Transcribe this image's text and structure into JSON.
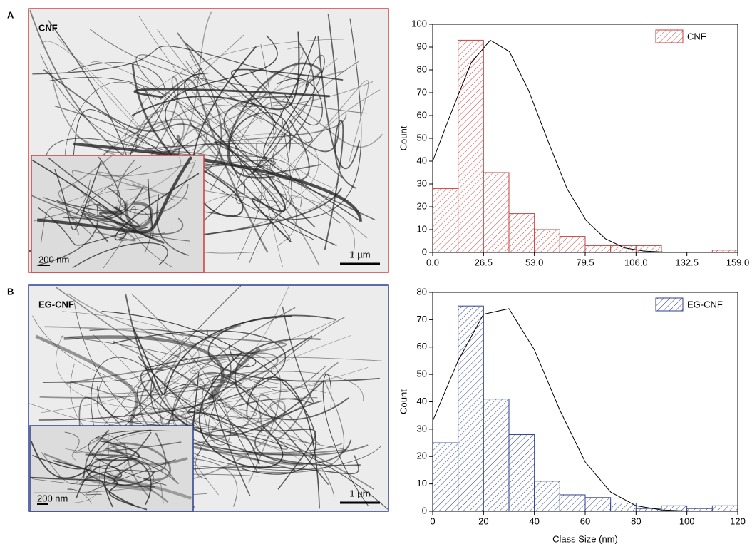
{
  "panels": [
    {
      "letter": "A",
      "image_label": "CNF",
      "scale_bar": "1 µm",
      "inset_scale_bar": "200 nm"
    },
    {
      "letter": "B",
      "image_label": "EG-CNF",
      "scale_bar": "1 µm",
      "inset_scale_bar": "200 nm"
    }
  ],
  "chart_data": [
    {
      "type": "histogram",
      "bins": [
        0,
        13.25,
        26.5,
        39.75,
        53,
        66.25,
        79.5,
        92.75,
        106,
        119.25,
        132.5,
        145.75,
        159
      ],
      "series": [
        {
          "name": "CNF",
          "color": "#c8403f",
          "values": [
            28,
            93,
            35,
            17,
            10,
            7,
            3,
            3,
            3,
            0,
            0,
            1
          ]
        }
      ],
      "curve": {
        "x": [
          0,
          10,
          20,
          30,
          40,
          50,
          60,
          70,
          80,
          90,
          100,
          110,
          120,
          130,
          140,
          150,
          159
        ],
        "values": [
          40,
          62,
          83,
          93,
          88,
          71,
          49,
          28,
          14,
          6,
          2,
          0.6,
          0.2,
          0,
          0,
          0,
          0
        ]
      },
      "ylabel": "Count",
      "xlim": [
        0,
        159
      ],
      "ylim": [
        0,
        100
      ],
      "xticks": [
        {
          "value": 0,
          "label": "0.0"
        },
        26.5,
        {
          "value": 53,
          "label": "53.0"
        },
        79.5,
        {
          "value": 106,
          "label": "106.0"
        },
        132.5,
        {
          "value": 159,
          "label": "159.0"
        }
      ],
      "yticks": [
        0,
        10,
        20,
        30,
        40,
        50,
        60,
        70,
        80,
        90,
        100
      ],
      "legend": "upper right"
    },
    {
      "type": "histogram",
      "bins": [
        0,
        10,
        20,
        30,
        40,
        50,
        60,
        70,
        80,
        90,
        100,
        110,
        120
      ],
      "series": [
        {
          "name": "EG-CNF",
          "color": "#2f3f8f",
          "values": [
            25,
            75,
            41,
            28,
            11,
            6,
            5,
            3,
            1,
            2,
            1,
            2
          ]
        }
      ],
      "curve": {
        "x": [
          0,
          10,
          20,
          30,
          40,
          50,
          60,
          70,
          80,
          90,
          100,
          110,
          120
        ],
        "values": [
          33,
          55,
          72,
          74,
          59,
          37,
          18,
          7,
          2,
          0.5,
          0.1,
          0,
          0
        ]
      },
      "xlabel": "Class Size (nm)",
      "ylabel": "Count",
      "xlim": [
        0,
        120
      ],
      "ylim": [
        0,
        80
      ],
      "xticks": [
        0,
        20,
        40,
        60,
        80,
        100,
        120
      ],
      "yticks": [
        0,
        10,
        20,
        30,
        40,
        50,
        60,
        70,
        80
      ],
      "legend": "upper right"
    }
  ]
}
